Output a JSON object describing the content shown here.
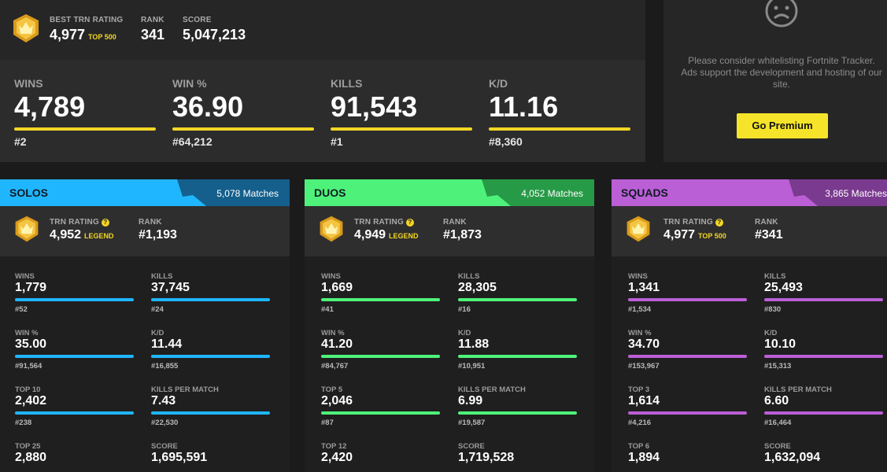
{
  "colors": {
    "yellow": "#f5d623",
    "solos": "#1fb6ff",
    "duos": "#4ef27a",
    "squads": "#bb5fd6"
  },
  "top": {
    "best_rating_label": "BEST TRN RATING",
    "best_rating_value": "4,977",
    "best_rating_tag": "TOP 500",
    "rank_label": "RANK",
    "rank_value": "341",
    "score_label": "SCORE",
    "score_value": "5,047,213"
  },
  "lifetime": [
    {
      "label": "WINS",
      "value": "4,789",
      "rank": "#2"
    },
    {
      "label": "WIN %",
      "value": "36.90",
      "rank": "#64,212"
    },
    {
      "label": "KILLS",
      "value": "91,543",
      "rank": "#1"
    },
    {
      "label": "K/D",
      "value": "11.16",
      "rank": "#8,360"
    }
  ],
  "ad": {
    "icon": "sad-face-icon",
    "line1": "Please consider whitelisting Fortnite Tracker.",
    "line2": "Ads support the development and hosting of our",
    "line3": "site.",
    "button": "Go Premium"
  },
  "modes": [
    {
      "title": "SOLOS",
      "matches": "5,078 Matches",
      "rating_label": "TRN RATING",
      "rating_value": "4,952",
      "rating_tag": "LEGEND",
      "rank_label": "RANK",
      "rank_value": "#1,193",
      "stats": [
        {
          "label": "WINS",
          "value": "1,779",
          "rank": "#52"
        },
        {
          "label": "KILLS",
          "value": "37,745",
          "rank": "#24"
        },
        {
          "label": "WIN %",
          "value": "35.00",
          "rank": "#91,564"
        },
        {
          "label": "K/D",
          "value": "11.44",
          "rank": "#16,855"
        },
        {
          "label": "TOP 10",
          "value": "2,402",
          "rank": "#238"
        },
        {
          "label": "KILLS PER MATCH",
          "value": "7.43",
          "rank": "#22,530"
        },
        {
          "label": "TOP 25",
          "value": "2,880",
          "rank": ""
        },
        {
          "label": "SCORE",
          "value": "1,695,591",
          "rank": ""
        }
      ]
    },
    {
      "title": "DUOS",
      "matches": "4,052 Matches",
      "rating_label": "TRN RATING",
      "rating_value": "4,949",
      "rating_tag": "LEGEND",
      "rank_label": "RANK",
      "rank_value": "#1,873",
      "stats": [
        {
          "label": "WINS",
          "value": "1,669",
          "rank": "#41"
        },
        {
          "label": "KILLS",
          "value": "28,305",
          "rank": "#16"
        },
        {
          "label": "WIN %",
          "value": "41.20",
          "rank": "#84,767"
        },
        {
          "label": "K/D",
          "value": "11.88",
          "rank": "#10,951"
        },
        {
          "label": "TOP 5",
          "value": "2,046",
          "rank": "#87"
        },
        {
          "label": "KILLS PER MATCH",
          "value": "6.99",
          "rank": "#19,587"
        },
        {
          "label": "TOP 12",
          "value": "2,420",
          "rank": ""
        },
        {
          "label": "SCORE",
          "value": "1,719,528",
          "rank": ""
        }
      ]
    },
    {
      "title": "SQUADS",
      "matches": "3,865 Matches",
      "rating_label": "TRN RATING",
      "rating_value": "4,977",
      "rating_tag": "TOP 500",
      "rank_label": "RANK",
      "rank_value": "#341",
      "stats": [
        {
          "label": "WINS",
          "value": "1,341",
          "rank": "#1,534"
        },
        {
          "label": "KILLS",
          "value": "25,493",
          "rank": "#830"
        },
        {
          "label": "WIN %",
          "value": "34.70",
          "rank": "#153,967"
        },
        {
          "label": "K/D",
          "value": "10.10",
          "rank": "#15,313"
        },
        {
          "label": "TOP 3",
          "value": "1,614",
          "rank": "#4,216"
        },
        {
          "label": "KILLS PER MATCH",
          "value": "6.60",
          "rank": "#16,464"
        },
        {
          "label": "TOP 6",
          "value": "1,894",
          "rank": ""
        },
        {
          "label": "SCORE",
          "value": "1,632,094",
          "rank": ""
        }
      ]
    }
  ]
}
